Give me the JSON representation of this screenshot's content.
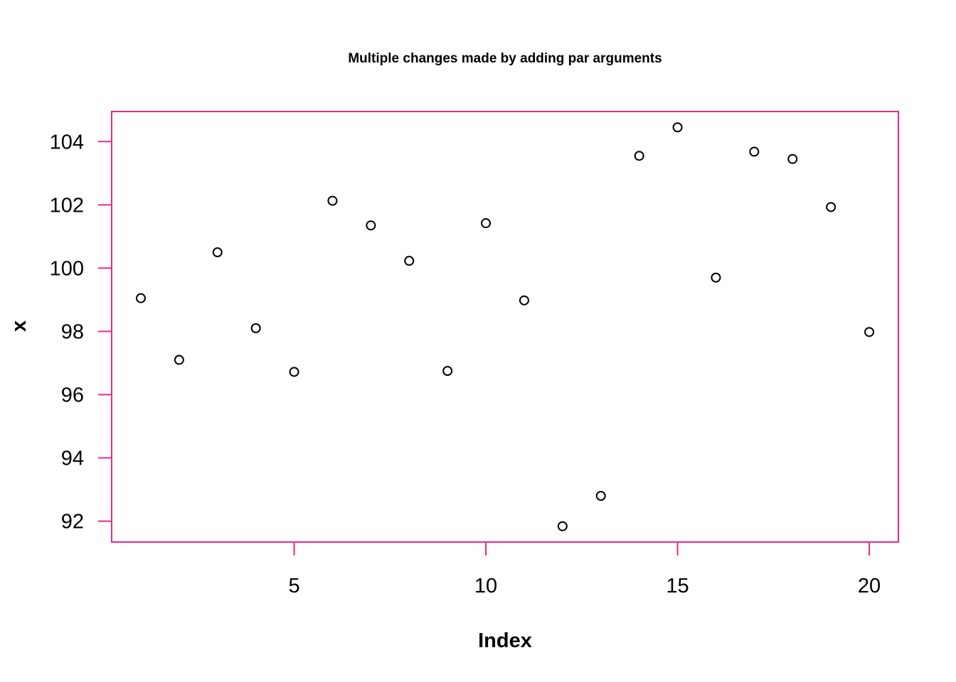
{
  "chart_data": {
    "type": "scatter",
    "title": "Multiple changes made by adding par arguments",
    "xlabel": "Index",
    "ylabel": "x",
    "x": [
      1,
      2,
      3,
      4,
      5,
      6,
      7,
      8,
      9,
      10,
      11,
      12,
      13,
      14,
      15,
      16,
      17,
      18,
      19,
      20
    ],
    "y": [
      99.05,
      97.1,
      100.5,
      98.1,
      96.72,
      102.13,
      101.35,
      100.23,
      96.75,
      101.42,
      98.98,
      91.84,
      92.8,
      103.55,
      104.45,
      99.7,
      103.68,
      103.45,
      101.93,
      97.98
    ],
    "xticks": [
      5,
      10,
      15,
      20
    ],
    "yticks": [
      92,
      94,
      96,
      98,
      100,
      102,
      104
    ],
    "xlim": [
      0.24,
      20.76
    ],
    "ylim": [
      91.34,
      104.95
    ],
    "grid": false,
    "marker": "open-circle",
    "colors": {
      "box": "#e7298a",
      "axes": "#e7298a",
      "points": "#000000",
      "text": "#000000"
    }
  }
}
